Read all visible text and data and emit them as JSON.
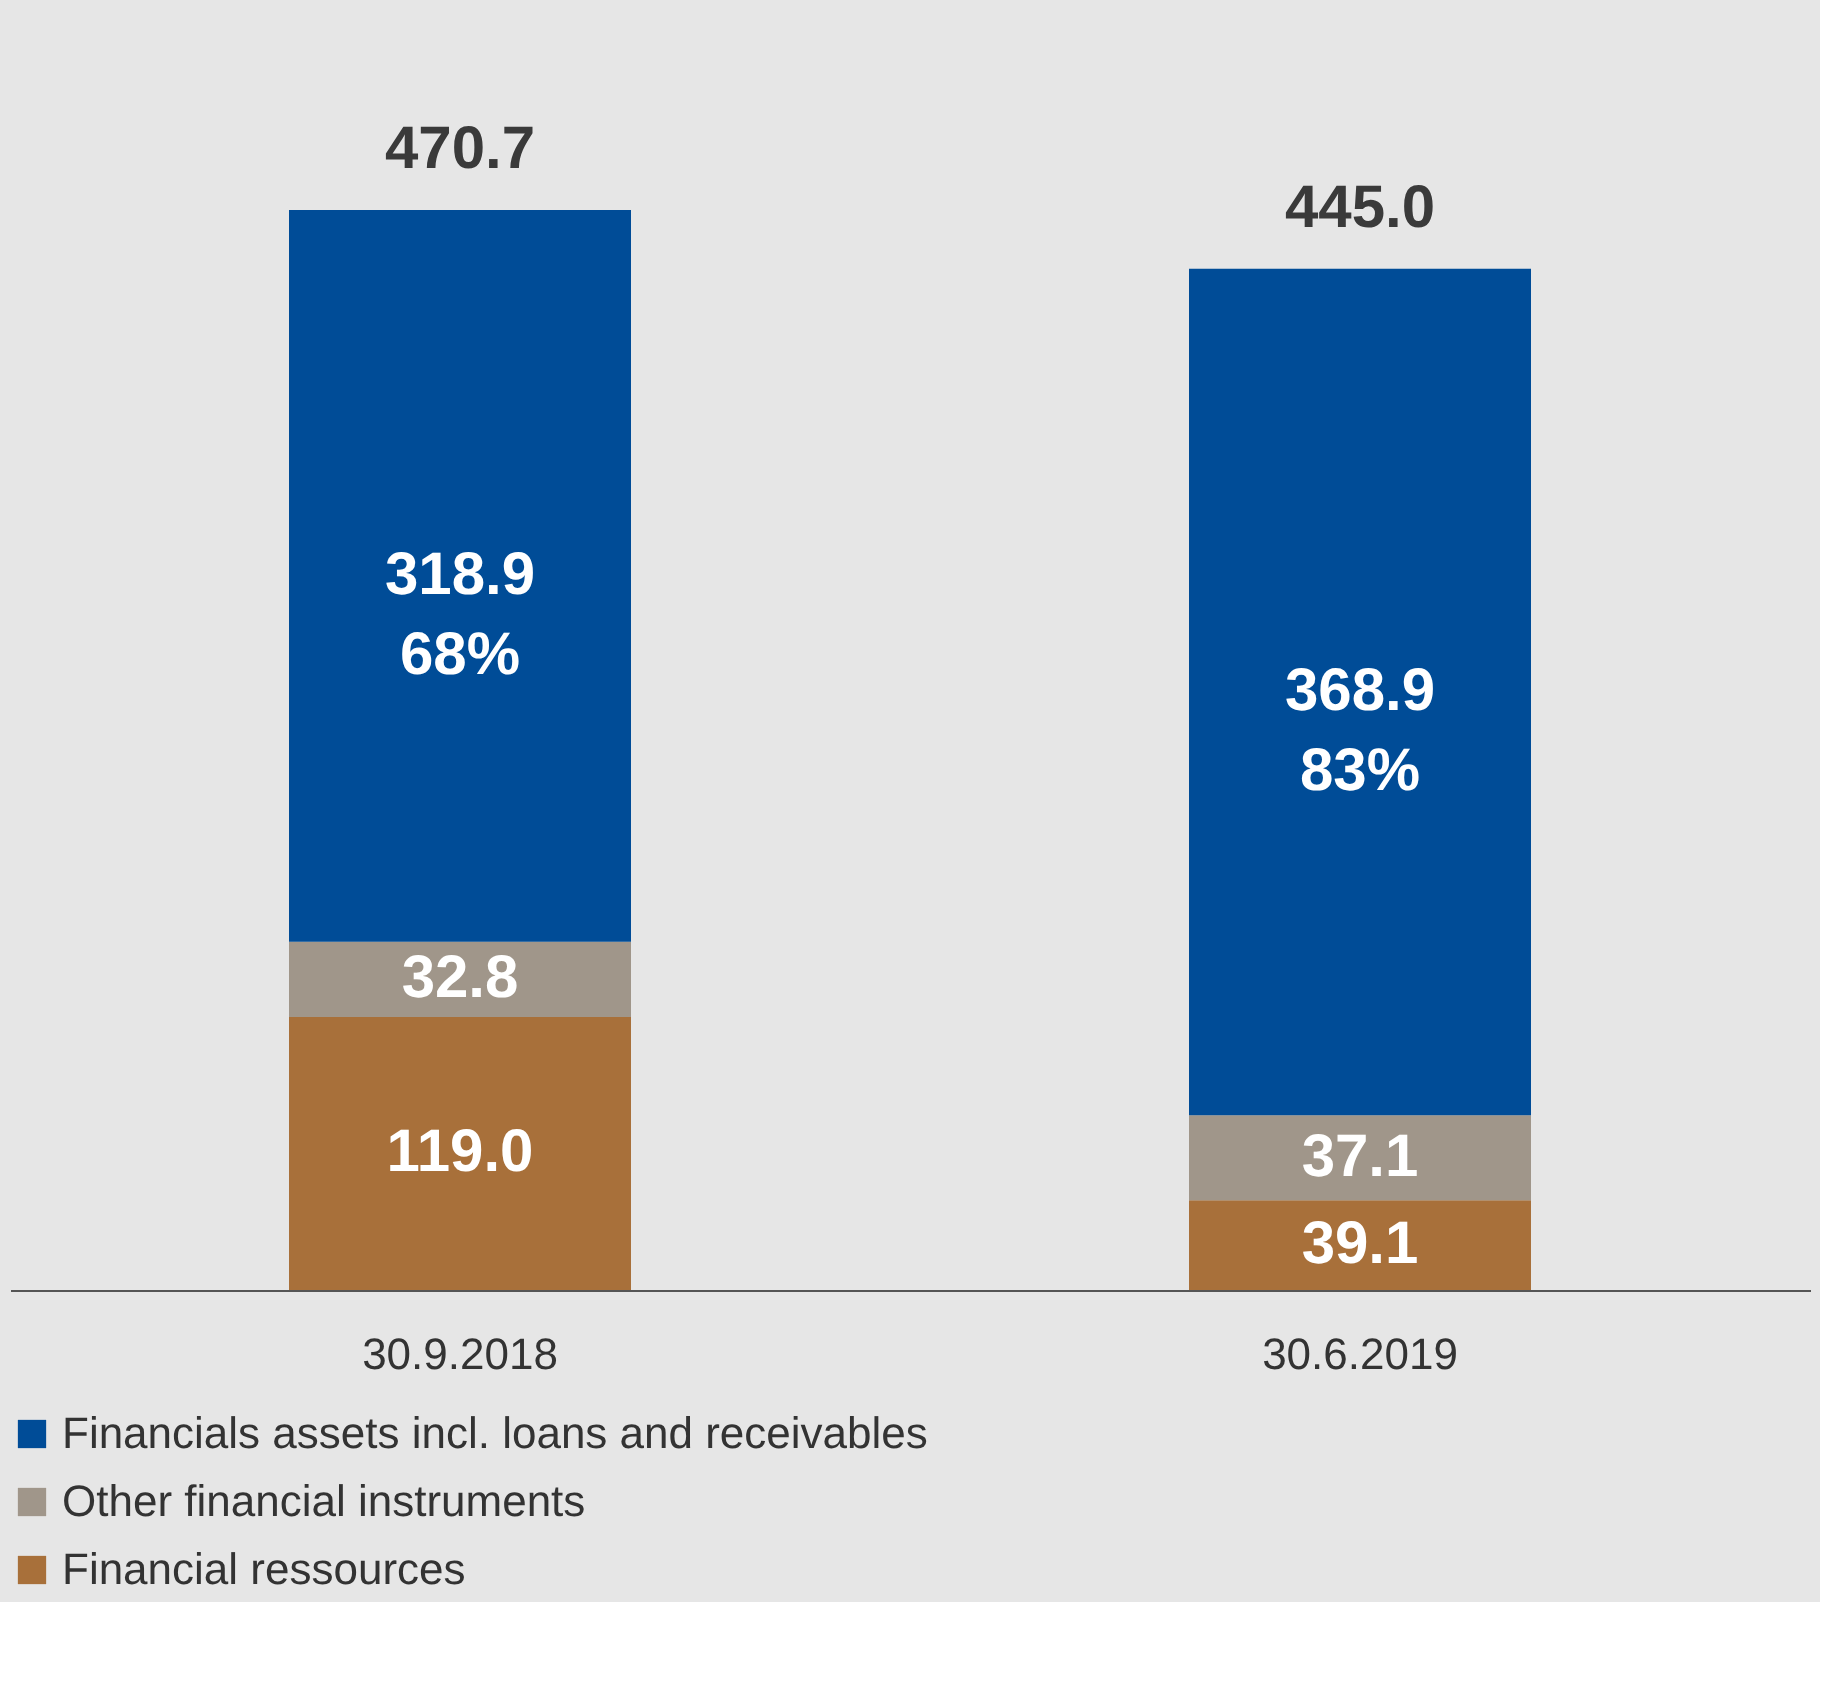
{
  "chart_data": {
    "type": "bar",
    "stacked": true,
    "categories": [
      "30.9.2018",
      "30.6.2019"
    ],
    "series": [
      {
        "name": "Financial ressources",
        "color": "#a8703a",
        "values": [
          119.0,
          39.1
        ],
        "value_labels": [
          "119.0",
          "39.1"
        ]
      },
      {
        "name": "Other financial instruments",
        "color": "#a0968a",
        "values": [
          32.8,
          37.1
        ],
        "value_labels": [
          "32.8",
          "37.1"
        ]
      },
      {
        "name": "Financials assets incl. loans and receivables",
        "color": "#004c97",
        "values": [
          318.9,
          368.9
        ],
        "value_labels": [
          "318.9\n68%",
          "368.9\n83%"
        ]
      }
    ],
    "totals": [
      "470.7",
      "445.0"
    ],
    "legend": "bottom",
    "grid": false
  }
}
